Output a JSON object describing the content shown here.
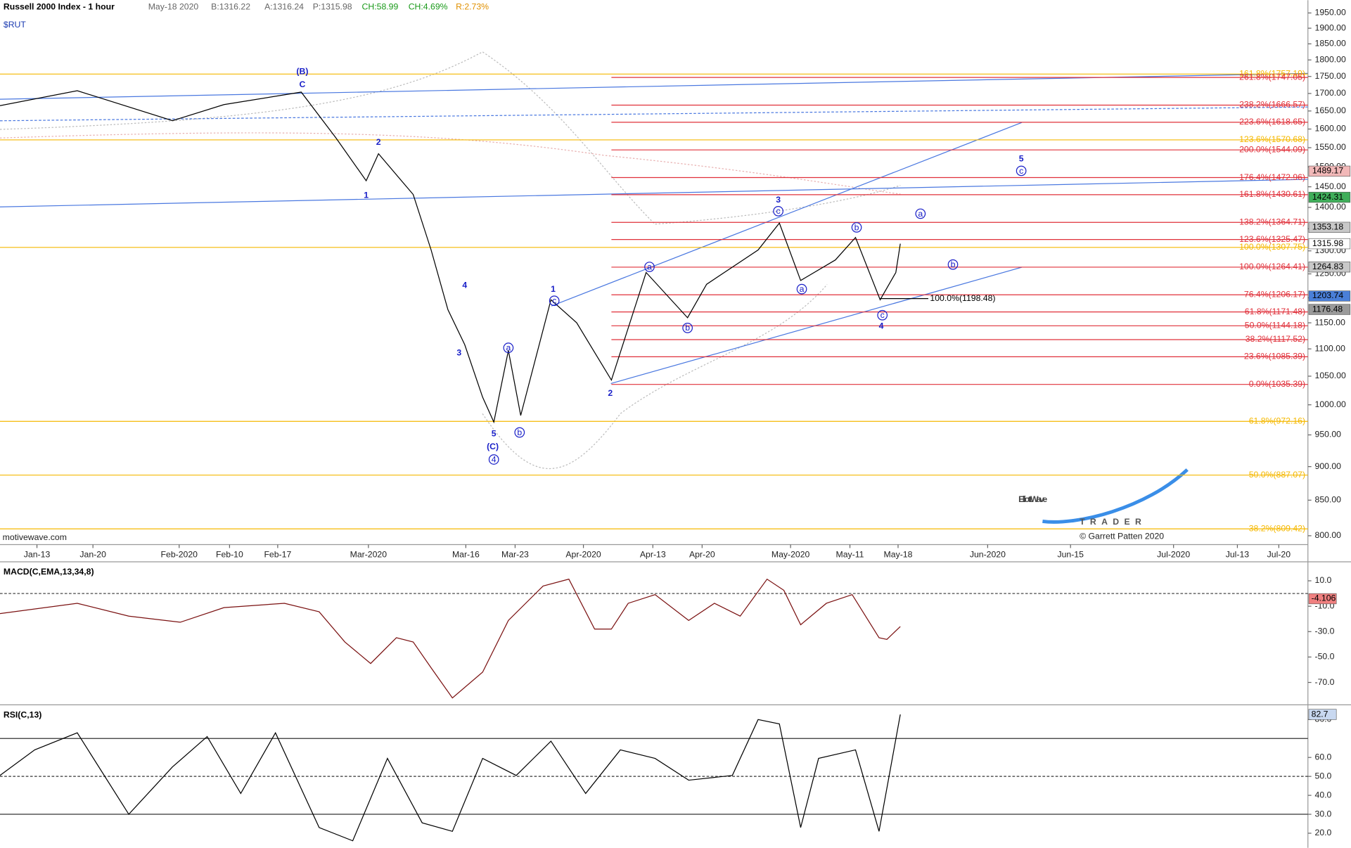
{
  "header": {
    "title": "Russell 2000 Index - 1 hour",
    "date": "May-18 2020",
    "bid": "B:1316.22",
    "ask": "A:1316.24",
    "price": "P:1315.98",
    "change": "CH:58.99",
    "change_pct": "CH:4.69%",
    "range": "R:2.73%",
    "symbol": "$RUT",
    "source": "motivewave.com"
  },
  "logo": {
    "name": "ElliottWave",
    "sub": "TRADER",
    "copyright": "© Garrett Patten 2020"
  },
  "chart_data": [
    {
      "type": "line",
      "log_scale": true,
      "color": "#000000",
      "x": [
        -3.3,
        3.6,
        12.1,
        16.7,
        23.6,
        26.7,
        29.4,
        30.5,
        33.6,
        35.2,
        36.7,
        38.2,
        39.8,
        40.8,
        42.1,
        43.2,
        45.9,
        48.2,
        51.3,
        54.4,
        58.1,
        59.8,
        64.4,
        66.3,
        68.2,
        71.3,
        73.1,
        75.3,
        76.7,
        77.1
      ],
      "values": [
        1665,
        1708,
        1623,
        1668,
        1704,
        1576,
        1465,
        1534,
        1431,
        1302,
        1176,
        1108,
        1013,
        971,
        1097,
        982,
        1196,
        1150,
        1043,
        1253,
        1160,
        1228,
        1302,
        1363,
        1236,
        1280,
        1330,
        1196,
        1253,
        1316
      ],
      "xlim": [
        -3.3,
        113.5
      ],
      "xticks": [
        {
          "value": 0,
          "label": "Jan-13"
        },
        {
          "value": 5,
          "label": "Jan-20"
        },
        {
          "value": 12.7,
          "label": "Feb-2020"
        },
        {
          "value": 17.2,
          "label": "Feb-10"
        },
        {
          "value": 21.5,
          "label": "Feb-17"
        },
        {
          "value": 29.6,
          "label": "Mar-2020"
        },
        {
          "value": 38.3,
          "label": "Mar-16"
        },
        {
          "value": 42.7,
          "label": "Mar-23"
        },
        {
          "value": 48.8,
          "label": "Apr-2020"
        },
        {
          "value": 55,
          "label": "Apr-13"
        },
        {
          "value": 59.4,
          "label": "Apr-20"
        },
        {
          "value": 67.3,
          "label": "May-2020"
        },
        {
          "value": 72.6,
          "label": "May-11"
        },
        {
          "value": 76.9,
          "label": "May-18"
        },
        {
          "value": 84.9,
          "label": "Jun-2020"
        },
        {
          "value": 92.3,
          "label": "Jun-15"
        },
        {
          "value": 101.5,
          "label": "Jul-2020"
        },
        {
          "value": 107.2,
          "label": "Jul-13"
        },
        {
          "value": 110.9,
          "label": "Jul-20"
        }
      ],
      "ylim": [
        788,
        1993
      ],
      "yticks": [
        {
          "value": 1950,
          "label": "1950.00"
        },
        {
          "value": 1900,
          "label": "1900.00"
        },
        {
          "value": 1850,
          "label": "1850.00"
        },
        {
          "value": 1800,
          "label": "1800.00"
        },
        {
          "value": 1750,
          "label": "1750.00"
        },
        {
          "value": 1700,
          "label": "1700.00"
        },
        {
          "value": 1650,
          "label": "1650.00"
        },
        {
          "value": 1600,
          "label": "1600.00"
        },
        {
          "value": 1550,
          "label": "1550.00"
        },
        {
          "value": 1500,
          "label": "1500.00"
        },
        {
          "value": 1450,
          "label": "1450.00"
        },
        {
          "value": 1400,
          "label": "1400.00"
        },
        {
          "value": 1350,
          "label": "1350.00"
        },
        {
          "value": 1300,
          "label": "1300.00"
        },
        {
          "value": 1250,
          "label": "1250.00"
        },
        {
          "value": 1200,
          "label": "1200.00"
        },
        {
          "value": 1150,
          "label": "1150.00"
        },
        {
          "value": 1100,
          "label": "1100.00"
        },
        {
          "value": 1050,
          "label": "1050.00"
        },
        {
          "value": 1000,
          "label": "1000.00"
        },
        {
          "value": 950,
          "label": "950.00"
        },
        {
          "value": 900,
          "label": "900.00"
        },
        {
          "value": 850,
          "label": "850.00"
        },
        {
          "value": 800,
          "label": "800.00"
        }
      ],
      "levels": [
        {
          "label": "161.8%(1757.19)",
          "value": 1757.19,
          "color": "#f5b800"
        },
        {
          "label": "123.6%(1570.68)",
          "value": 1570.68,
          "color": "#f5b800"
        },
        {
          "label": "100.0%(1307.75)",
          "value": 1307.75,
          "color": "#f5b800"
        },
        {
          "label": "61.8%(972.16)",
          "value": 972.16,
          "color": "#f5b800"
        },
        {
          "label": "50.0%(887.07)",
          "value": 887.07,
          "color": "#f5b800"
        },
        {
          "label": "38.2%(809.42)",
          "value": 809.42,
          "color": "#f5b800"
        },
        {
          "label": "261.8%(1747.05)",
          "value": 1747.05,
          "color": "#e0303a",
          "from": 51.3
        },
        {
          "label": "238.2%(1666.57)",
          "value": 1666.57,
          "color": "#e0303a",
          "from": 51.3
        },
        {
          "label": "223.6%(1618.65)",
          "value": 1618.65,
          "color": "#e0303a",
          "from": 51.3
        },
        {
          "label": "200.0%(1544.09)",
          "value": 1544.09,
          "color": "#e0303a",
          "from": 51.3
        },
        {
          "label": "176.4%(1472.96)",
          "value": 1472.96,
          "color": "#e0303a",
          "from": 51.3
        },
        {
          "label": "161.8%(1430.61)",
          "value": 1430.61,
          "color": "#e0303a",
          "from": 51.3
        },
        {
          "label": "138.2%(1364.71)",
          "value": 1364.71,
          "color": "#e0303a",
          "from": 51.3
        },
        {
          "label": "123.6%(1325.47)",
          "value": 1325.47,
          "color": "#e0303a",
          "from": 51.3
        },
        {
          "label": "100.0%(1264.41)",
          "value": 1264.41,
          "color": "#e0303a",
          "from": 51.3
        },
        {
          "label": "76.4%(1206.17)",
          "value": 1206.17,
          "color": "#e0303a",
          "from": 51.3
        },
        {
          "label": "61.8%(1171.48)",
          "value": 1171.48,
          "color": "#e0303a",
          "from": 51.3
        },
        {
          "label": "50.0%(1144.18)",
          "value": 1144.18,
          "color": "#e0303a",
          "from": 51.3
        },
        {
          "label": "38.2%(1117.52)",
          "value": 1117.52,
          "color": "#e0303a",
          "from": 51.3
        },
        {
          "label": "23.6%(1085.39)",
          "value": 1085.39,
          "color": "#e0303a",
          "from": 51.3
        },
        {
          "label": "0.0%(1035.39)",
          "value": 1035.39,
          "color": "#e0303a",
          "from": 51.3
        },
        {
          "label": "100.0%(1198.48)",
          "value": 1198.48,
          "color": "#000000",
          "from": 75.3,
          "to": 79.6
        }
      ],
      "price_markers": {
        "values": [
          1489.17,
          1424.31,
          1353.18,
          1315.98,
          1264.83,
          1203.74,
          1176.48
        ],
        "colors": [
          "#f2b8b8",
          "#3fae5a",
          "#c8c8c8",
          "#ffffff",
          "#c8c8c8",
          "#4a7fd8",
          "#9a9a9a"
        ]
      },
      "annotations": [
        {
          "text": "(B)",
          "x": 23.7,
          "y": 1765
        },
        {
          "text": "C",
          "x": 23.7,
          "y": 1726
        },
        {
          "text": "2",
          "x": 30.5,
          "y": 1565
        },
        {
          "text": "1",
          "x": 29.4,
          "y": 1429
        },
        {
          "text": "4",
          "x": 38.2,
          "y": 1226
        },
        {
          "text": "3",
          "x": 37.7,
          "y": 1093
        },
        {
          "text": "5",
          "x": 40.8,
          "y": 952
        },
        {
          "text": "(C)",
          "x": 40.7,
          "y": 931
        },
        {
          "text": "4",
          "x": 40.8,
          "y": 911,
          "circled": true
        },
        {
          "text": "a",
          "x": 42.1,
          "y": 1102,
          "circled": true
        },
        {
          "text": "b",
          "x": 43.1,
          "y": 954,
          "circled": true
        },
        {
          "text": "1",
          "x": 46.1,
          "y": 1218
        },
        {
          "text": "c",
          "x": 46.2,
          "y": 1194,
          "circled": true
        },
        {
          "text": "2",
          "x": 51.2,
          "y": 1020
        },
        {
          "text": "a",
          "x": 54.7,
          "y": 1265,
          "circled": true
        },
        {
          "text": "b",
          "x": 58.1,
          "y": 1140,
          "circled": true
        },
        {
          "text": "3",
          "x": 66.2,
          "y": 1418
        },
        {
          "text": "c",
          "x": 66.2,
          "y": 1391,
          "circled": true
        },
        {
          "text": "a",
          "x": 68.3,
          "y": 1218,
          "circled": true
        },
        {
          "text": "b",
          "x": 73.2,
          "y": 1353,
          "circled": true
        },
        {
          "text": "c",
          "x": 75.5,
          "y": 1165,
          "circled": true
        },
        {
          "text": "4",
          "x": 75.4,
          "y": 1144
        },
        {
          "text": "5",
          "x": 87.9,
          "y": 1521
        },
        {
          "text": "c",
          "x": 87.9,
          "y": 1490,
          "circled": true
        },
        {
          "text": "a",
          "x": 78.9,
          "y": 1385,
          "circled": true
        },
        {
          "text": "b",
          "x": 81.8,
          "y": 1270,
          "circled": true
        }
      ]
    },
    {
      "type": "line",
      "title": "MACD(C,EMA,13,34,8)",
      "color": "#7a1010",
      "x": [
        -3.3,
        3.6,
        8.2,
        12.8,
        16.7,
        22.1,
        25.2,
        27.5,
        29.8,
        32.1,
        33.6,
        35.2,
        37.1,
        39.8,
        42.1,
        45.2,
        47.5,
        49.8,
        51.3,
        52.8,
        55.2,
        58.2,
        60.5,
        62.8,
        65.2,
        66.7,
        68.2,
        70.5,
        72.8,
        75.2,
        75.9,
        77.1
      ],
      "values": [
        -15.8,
        -7.7,
        -17.8,
        -22.6,
        -11.1,
        -7.7,
        -14.4,
        -38.2,
        -55.1,
        -34.8,
        -38.2,
        -58.5,
        -82.2,
        -61.9,
        -21.2,
        5.9,
        11.3,
        -28,
        -28,
        -7.7,
        -0.9,
        -21.2,
        -7.7,
        -17.8,
        11.3,
        2.5,
        -24.6,
        -7.7,
        -0.9,
        -34.8,
        -36.1,
        -26
      ],
      "ylim": [
        -85.6,
        22.9
      ],
      "yticks": [
        {
          "value": 10,
          "label": "10.0"
        },
        {
          "value": -10,
          "label": "-10.0"
        },
        {
          "value": -30,
          "label": "-30.0"
        },
        {
          "value": -50,
          "label": "-50.0"
        },
        {
          "value": -70,
          "label": "-70.0"
        }
      ],
      "last_value": -4.106
    },
    {
      "type": "line",
      "title": "RSI(C,13)",
      "color": "#000000",
      "x": [
        -3.3,
        -0.2,
        3.6,
        8.2,
        12.1,
        15.2,
        18.2,
        21.3,
        25.2,
        28.2,
        31.3,
        34.4,
        37.1,
        39.8,
        42.8,
        45.9,
        49,
        52.1,
        55.2,
        58.2,
        62.1,
        64.4,
        66.3,
        68.2,
        69.8,
        73.1,
        75.2,
        77.1
      ],
      "values": [
        50.5,
        64,
        73,
        30,
        55,
        71,
        41,
        73,
        23,
        16,
        59.5,
        25.5,
        21,
        59.5,
        50.5,
        68.6,
        41,
        64,
        59.5,
        48,
        50.5,
        80,
        77.7,
        23,
        59.5,
        64,
        21,
        82.7
      ],
      "ylim": [
        13.2,
        85.5
      ],
      "yticks": [
        {
          "value": 80,
          "label": "80.0"
        },
        {
          "value": 60,
          "label": "60.0"
        },
        {
          "value": 50,
          "label": "50.0"
        },
        {
          "value": 40,
          "label": "40.0"
        },
        {
          "value": 30,
          "label": "30.0"
        },
        {
          "value": 20,
          "label": "20.0"
        }
      ],
      "levels": [
        70,
        50,
        30
      ],
      "last_value": 82.7
    }
  ]
}
